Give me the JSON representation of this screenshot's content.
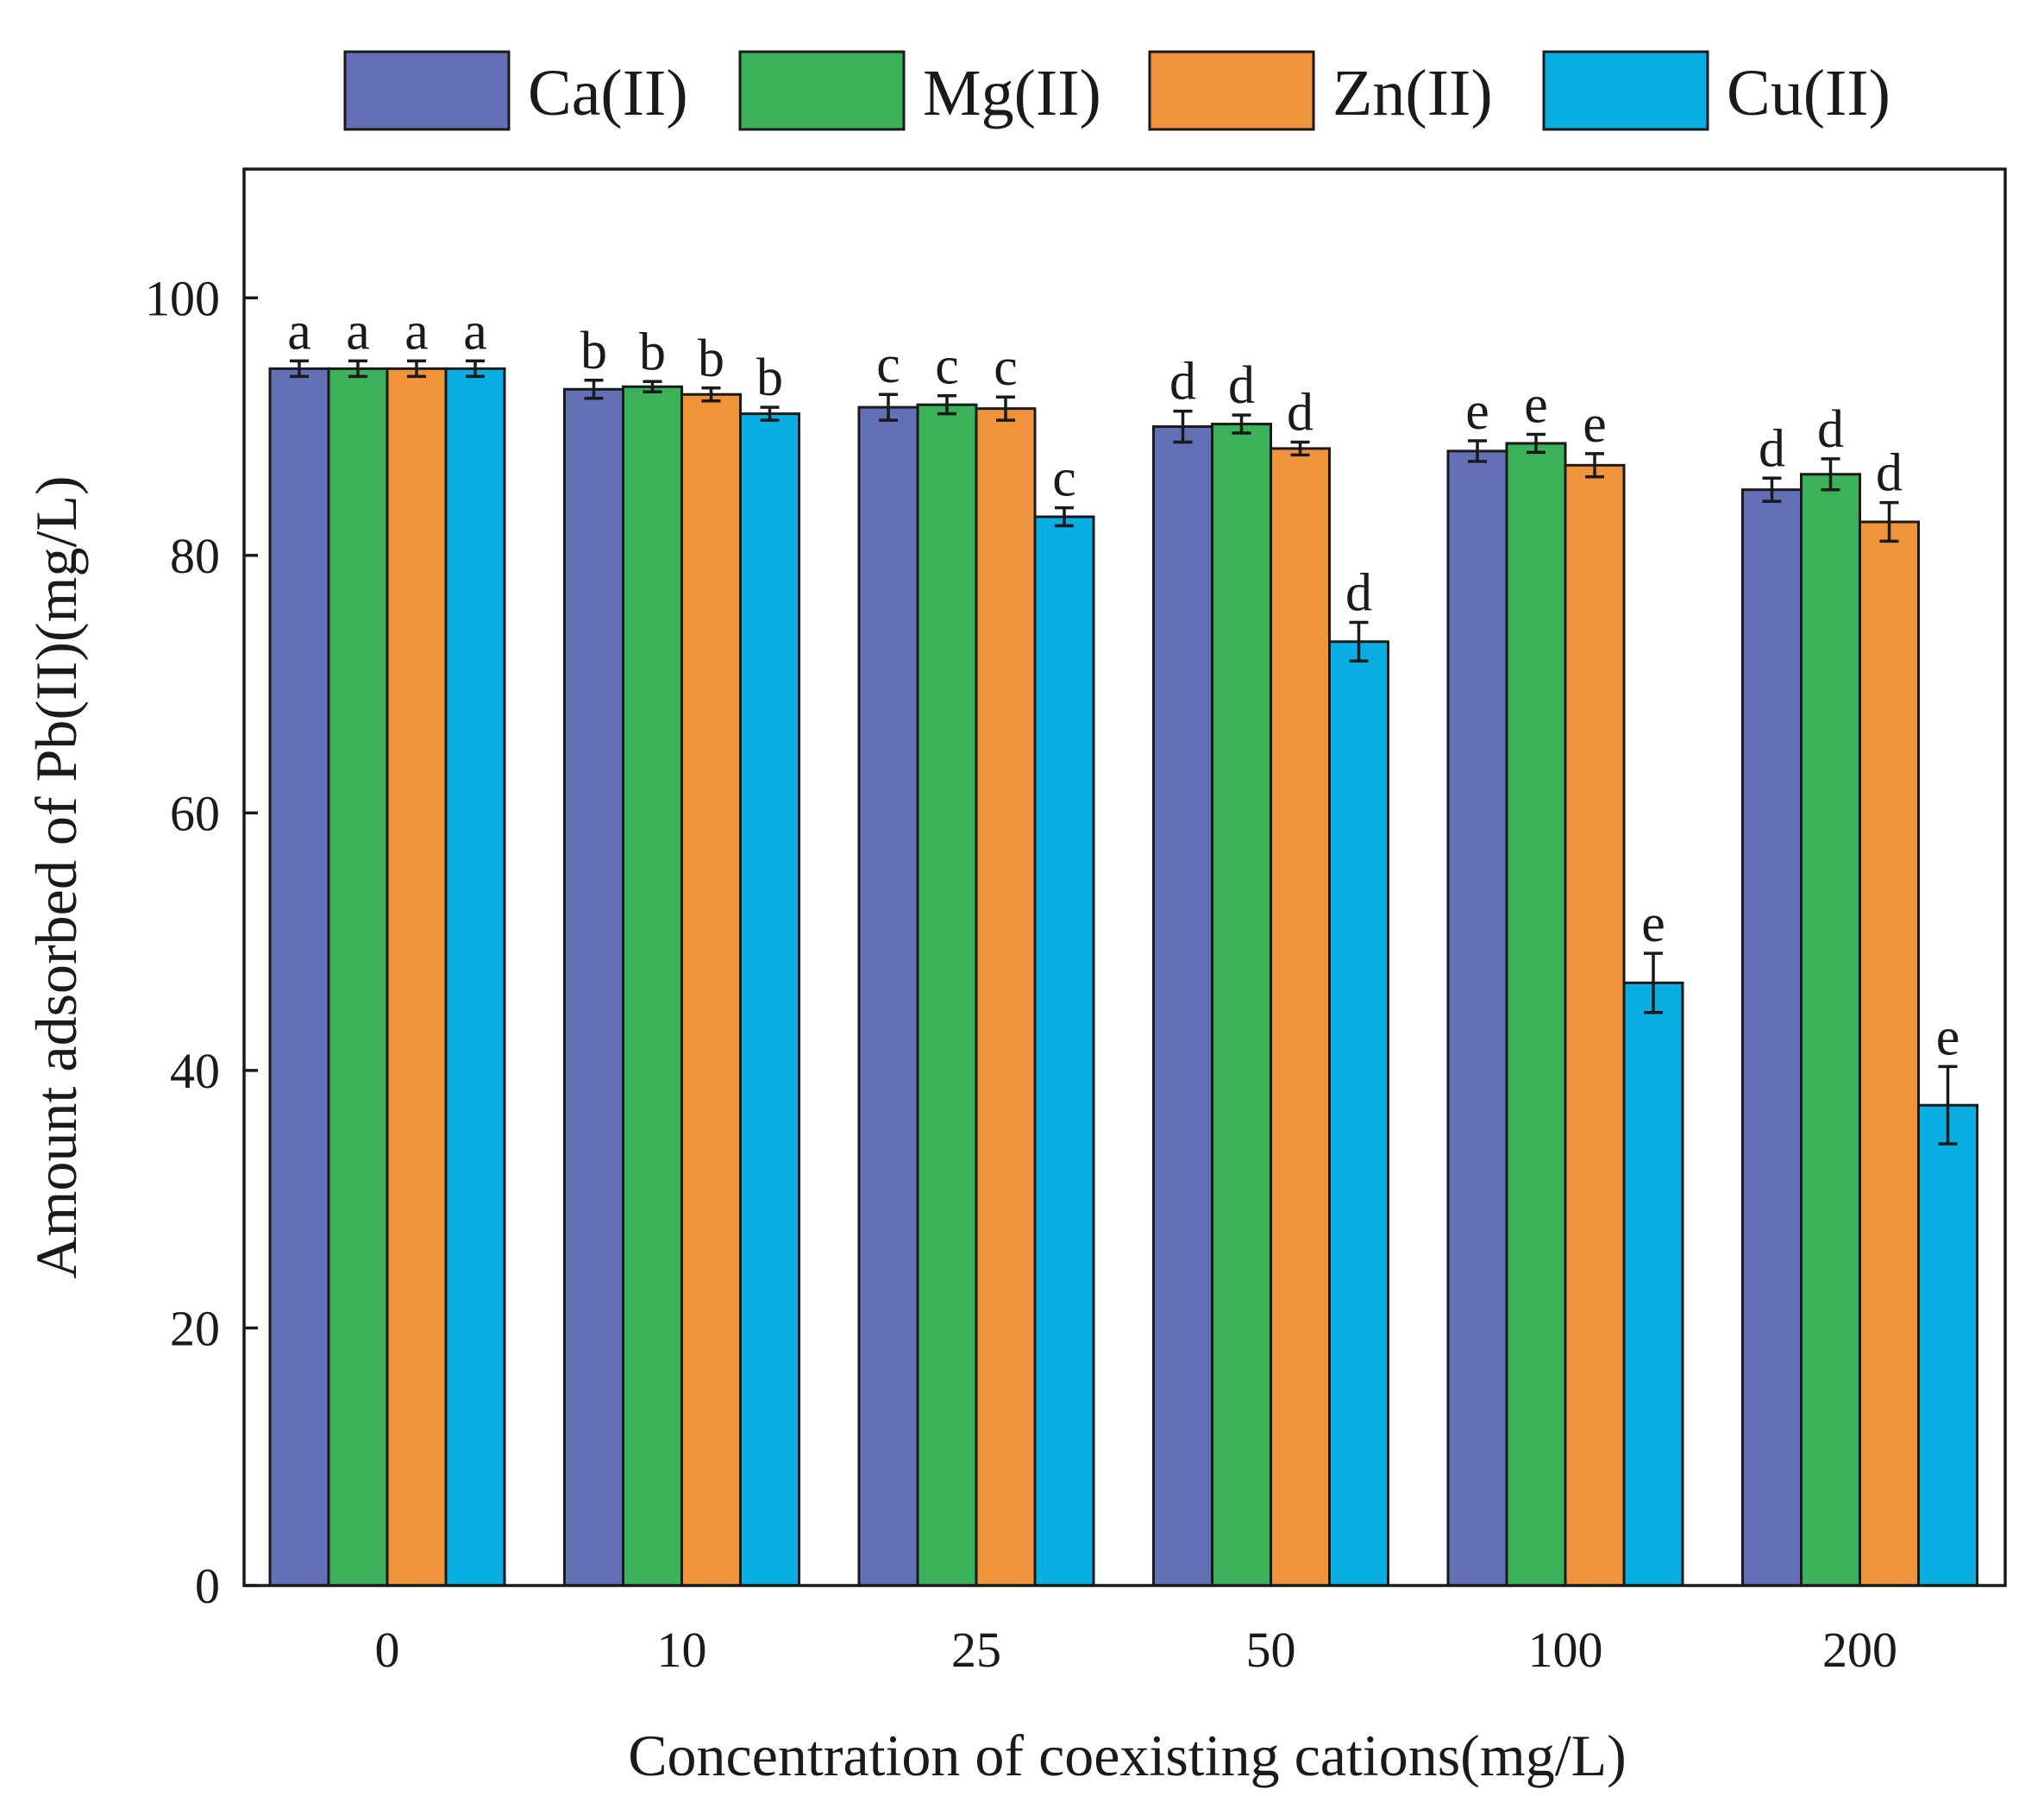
{
  "chart_data": {
    "type": "bar",
    "title": "",
    "xlabel": "Concentration of coexisting cations(mg/L)",
    "ylabel": "Amount adsorbed of Pb(II)(mg/L)",
    "ylim": [
      0,
      110
    ],
    "yticks": [
      0,
      20,
      40,
      60,
      80,
      100
    ],
    "categories": [
      "0",
      "10",
      "25",
      "50",
      "100",
      "200"
    ],
    "legend_position": "top",
    "series": [
      {
        "name": "Ca(II)",
        "color": "#6470b6",
        "values": [
          94.5,
          92.9,
          91.5,
          90.0,
          88.1,
          85.1
        ],
        "errors": [
          0.6,
          0.7,
          1.0,
          1.2,
          0.8,
          0.9
        ],
        "letters": [
          "a",
          "b",
          "c",
          "d",
          "e",
          "d"
        ]
      },
      {
        "name": "Mg(II)",
        "color": "#3bb25a",
        "values": [
          94.5,
          93.1,
          91.7,
          90.2,
          88.7,
          86.3
        ],
        "errors": [
          0.6,
          0.4,
          0.7,
          0.7,
          0.7,
          1.2
        ],
        "letters": [
          "a",
          "b",
          "c",
          "d",
          "e",
          "d"
        ]
      },
      {
        "name": "Zn(II)",
        "color": "#f0943c",
        "values": [
          94.5,
          92.5,
          91.4,
          88.3,
          87.0,
          82.6
        ],
        "errors": [
          0.6,
          0.5,
          0.9,
          0.5,
          0.9,
          1.5
        ],
        "letters": [
          "a",
          "b",
          "c",
          "d",
          "e",
          "d"
        ]
      },
      {
        "name": "Cu(II)",
        "color": "#09aee2",
        "values": [
          94.5,
          91.0,
          83.0,
          73.3,
          46.8,
          37.3
        ],
        "errors": [
          0.6,
          0.5,
          0.7,
          1.5,
          2.3,
          3.0
        ],
        "letters": [
          "a",
          "b",
          "c",
          "d",
          "e",
          "e"
        ]
      }
    ]
  }
}
